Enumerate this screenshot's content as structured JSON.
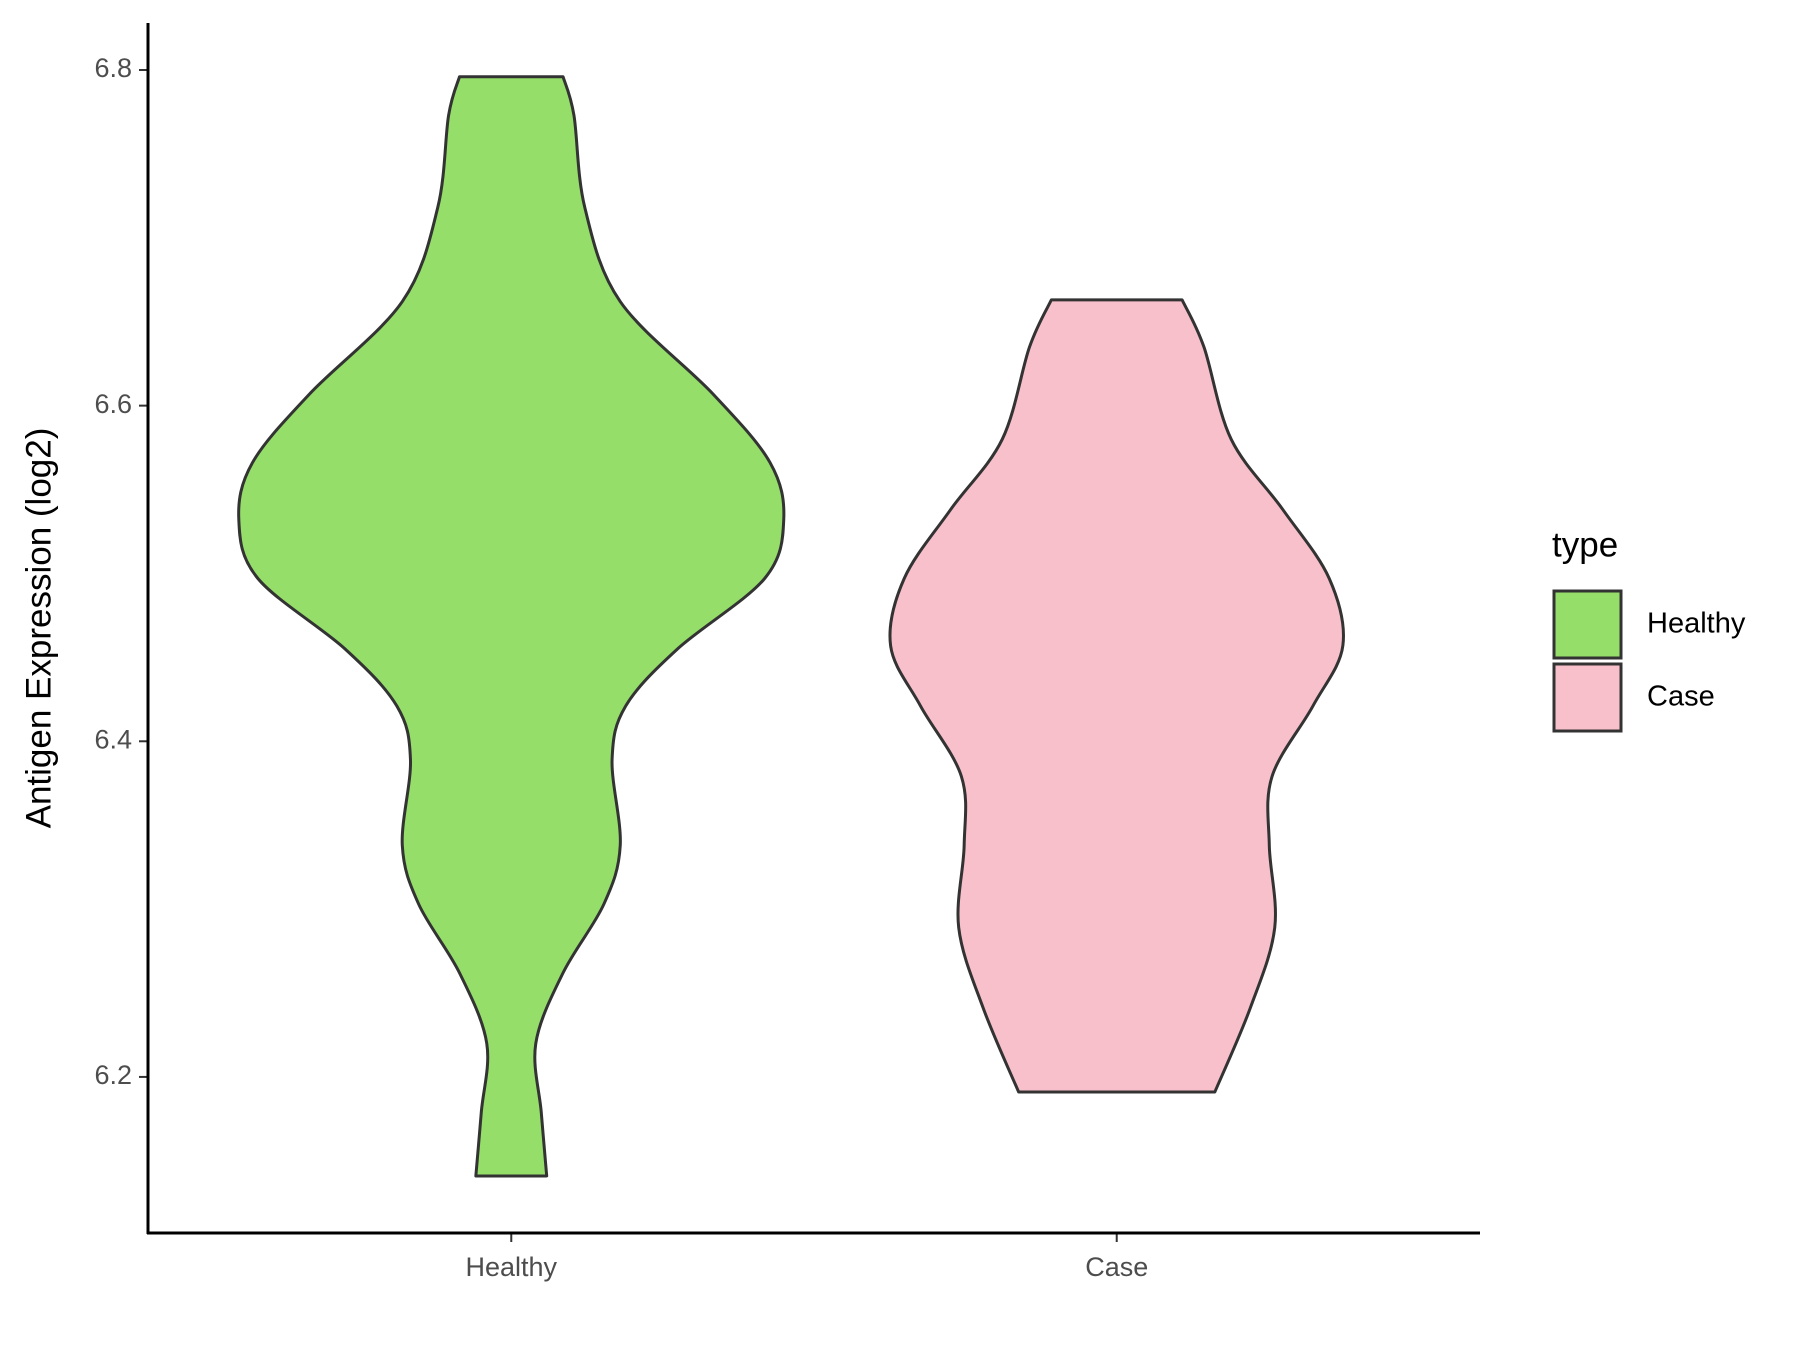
{
  "chart_data": {
    "type": "violin",
    "ylabel": "Antigen Expression (log2)",
    "categories": [
      "Healthy",
      "Case"
    ],
    "legend_title": "type",
    "legend": "right",
    "ylim": [
      6.107,
      6.828
    ],
    "yticks": [
      6.2,
      6.4,
      6.6,
      6.8
    ],
    "series": [
      {
        "name": "Healthy",
        "color": "#95de6a",
        "values": [
          6.796,
          6.773,
          6.718,
          6.662,
          6.607,
          6.566,
          6.532,
          6.497,
          6.455,
          6.421,
          6.389,
          6.338,
          6.303,
          6.262,
          6.22,
          6.179,
          6.141
        ],
        "widths": [
          0.19,
          0.23,
          0.27,
          0.4,
          0.74,
          0.95,
          1,
          0.93,
          0.61,
          0.42,
          0.37,
          0.4,
          0.34,
          0.19,
          0.09,
          0.11,
          0.13
        ]
      },
      {
        "name": "Case",
        "color": "#f8c0cb",
        "values": [
          6.663,
          6.635,
          6.58,
          6.538,
          6.497,
          6.457,
          6.421,
          6.379,
          6.338,
          6.289,
          6.241,
          6.191
        ],
        "widths": [
          0.24,
          0.32,
          0.42,
          0.61,
          0.78,
          0.83,
          0.72,
          0.57,
          0.56,
          0.58,
          0.49,
          0.36
        ]
      }
    ]
  }
}
